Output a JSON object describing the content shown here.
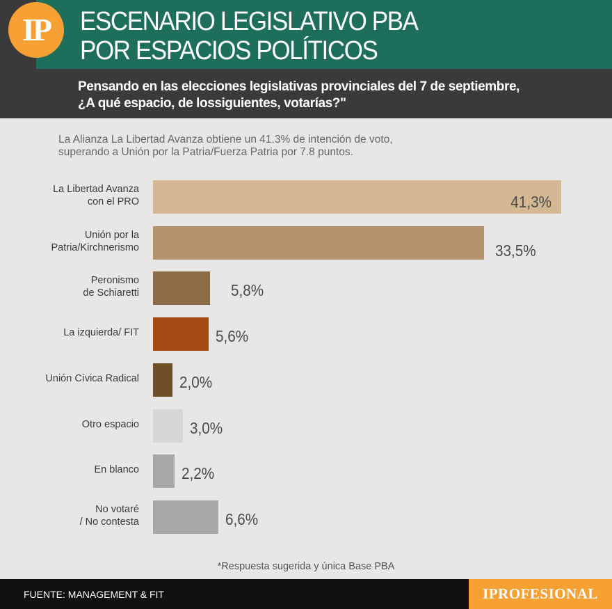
{
  "header": {
    "logo_text": "IP",
    "title_lines": [
      "ESCENARIO LEGISLATIVO PBA",
      "POR ESPACIOS POLÍTICOS"
    ],
    "question_lines": [
      "Pensando en las elecciones legislativas provinciales del 7 de septiembre,",
      "¿A qué espacio, de lossiguientes, votarías?\""
    ]
  },
  "subtitle_lines": [
    "La Alianza La Libertad Avanza obtiene un 41.3% de intención de voto,",
    "superando a Unión por la Patria/Fuerza Patria por 7.8 puntos."
  ],
  "chart_data": {
    "type": "bar",
    "orientation": "horizontal",
    "categories": [
      [
        "La Libertad Avanza",
        "con el PRO"
      ],
      [
        "Unión por la",
        "Patria/Kirchnerismo"
      ],
      [
        "Peronismo",
        "de Schiaretti"
      ],
      [
        "La izquierda/ FIT"
      ],
      [
        "Unión Cívica Radical"
      ],
      [
        "Otro espacio"
      ],
      [
        "En blanco"
      ],
      [
        "No votaré",
        "/ No contesta"
      ]
    ],
    "values": [
      41.3,
      33.5,
      5.8,
      5.6,
      2.0,
      3.0,
      2.2,
      6.6
    ],
    "value_labels": [
      "41,3%",
      "33,5%",
      "5,8%",
      "5,6%",
      "2,0%",
      "3,0%",
      "2,2%",
      "6,6%"
    ],
    "colors": [
      "#d4b893",
      "#b2936b",
      "#8c6c47",
      "#a54a14",
      "#6e4f26",
      "#d6d6d6",
      "#a8a8a8",
      "#a8a8a8"
    ],
    "xlim": [
      0,
      41.3
    ]
  },
  "footnote": "*Respuesta sugerida y única Base PBA",
  "footer": {
    "source": "FUENTE: MANAGEMENT & FIT",
    "brand": "IPROFESIONAL"
  }
}
